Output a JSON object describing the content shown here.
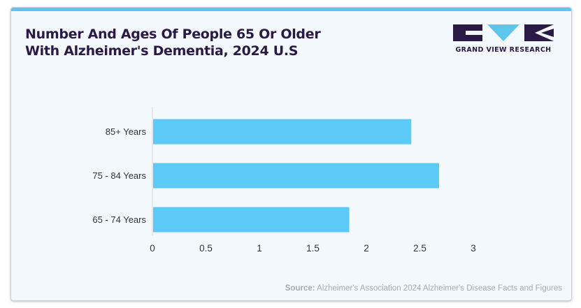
{
  "header": {
    "title_line1": "Number And Ages Of People 65 Or Older",
    "title_line2": "With Alzheimer's Dementia, 2024 U.S",
    "logo_text": "GRAND VIEW RESEARCH"
  },
  "source": {
    "label": "Source:",
    "text": "Alzheimer's Association 2024 Alzheimer's Disease Facts and Figures"
  },
  "colors": {
    "bar": "#5ccaf6",
    "title": "#2a1845",
    "accent": "#5cc6ee"
  },
  "chart_data": {
    "type": "bar",
    "orientation": "horizontal",
    "title": "Number And Ages Of People 65 Or Older With Alzheimer's Dementia, 2024 U.S",
    "categories": [
      "85+ Years",
      "75 - 84 Years",
      "65 - 74 Years"
    ],
    "values": [
      2.42,
      2.68,
      1.84
    ],
    "xlim": [
      0,
      3
    ],
    "xticks": [
      "0",
      "0.5",
      "1",
      "1.5",
      "2",
      "2.5",
      "3"
    ],
    "grid": false,
    "legend": "none"
  }
}
